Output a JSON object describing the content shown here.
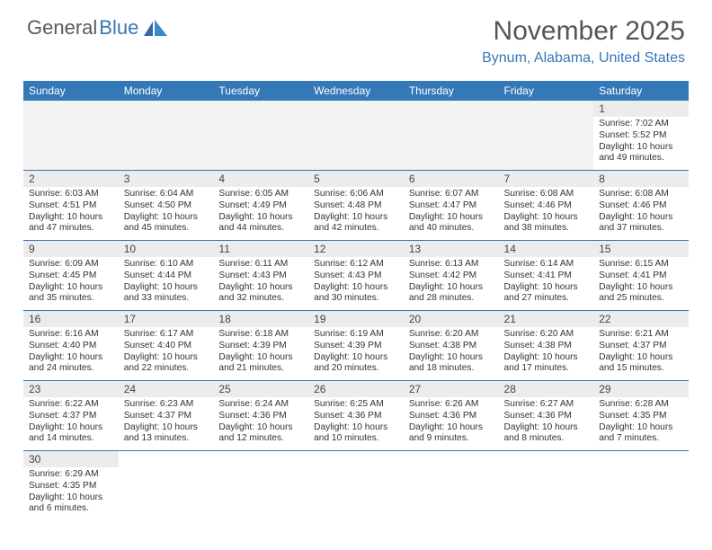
{
  "brand": {
    "part1": "General",
    "part2": "Blue"
  },
  "title": "November 2025",
  "location": "Bynum, Alabama, United States",
  "day_headers": [
    "Sunday",
    "Monday",
    "Tuesday",
    "Wednesday",
    "Thursday",
    "Friday",
    "Saturday"
  ],
  "colors": {
    "accent": "#3478b8",
    "header_text": "#555555",
    "row_shade": "#ececec"
  },
  "weeks": [
    [
      null,
      null,
      null,
      null,
      null,
      null,
      {
        "n": "1",
        "sunrise": "Sunrise: 7:02 AM",
        "sunset": "Sunset: 5:52 PM",
        "daylight": "Daylight: 10 hours and 49 minutes."
      }
    ],
    [
      {
        "n": "2",
        "sunrise": "Sunrise: 6:03 AM",
        "sunset": "Sunset: 4:51 PM",
        "daylight": "Daylight: 10 hours and 47 minutes."
      },
      {
        "n": "3",
        "sunrise": "Sunrise: 6:04 AM",
        "sunset": "Sunset: 4:50 PM",
        "daylight": "Daylight: 10 hours and 45 minutes."
      },
      {
        "n": "4",
        "sunrise": "Sunrise: 6:05 AM",
        "sunset": "Sunset: 4:49 PM",
        "daylight": "Daylight: 10 hours and 44 minutes."
      },
      {
        "n": "5",
        "sunrise": "Sunrise: 6:06 AM",
        "sunset": "Sunset: 4:48 PM",
        "daylight": "Daylight: 10 hours and 42 minutes."
      },
      {
        "n": "6",
        "sunrise": "Sunrise: 6:07 AM",
        "sunset": "Sunset: 4:47 PM",
        "daylight": "Daylight: 10 hours and 40 minutes."
      },
      {
        "n": "7",
        "sunrise": "Sunrise: 6:08 AM",
        "sunset": "Sunset: 4:46 PM",
        "daylight": "Daylight: 10 hours and 38 minutes."
      },
      {
        "n": "8",
        "sunrise": "Sunrise: 6:08 AM",
        "sunset": "Sunset: 4:46 PM",
        "daylight": "Daylight: 10 hours and 37 minutes."
      }
    ],
    [
      {
        "n": "9",
        "sunrise": "Sunrise: 6:09 AM",
        "sunset": "Sunset: 4:45 PM",
        "daylight": "Daylight: 10 hours and 35 minutes."
      },
      {
        "n": "10",
        "sunrise": "Sunrise: 6:10 AM",
        "sunset": "Sunset: 4:44 PM",
        "daylight": "Daylight: 10 hours and 33 minutes."
      },
      {
        "n": "11",
        "sunrise": "Sunrise: 6:11 AM",
        "sunset": "Sunset: 4:43 PM",
        "daylight": "Daylight: 10 hours and 32 minutes."
      },
      {
        "n": "12",
        "sunrise": "Sunrise: 6:12 AM",
        "sunset": "Sunset: 4:43 PM",
        "daylight": "Daylight: 10 hours and 30 minutes."
      },
      {
        "n": "13",
        "sunrise": "Sunrise: 6:13 AM",
        "sunset": "Sunset: 4:42 PM",
        "daylight": "Daylight: 10 hours and 28 minutes."
      },
      {
        "n": "14",
        "sunrise": "Sunrise: 6:14 AM",
        "sunset": "Sunset: 4:41 PM",
        "daylight": "Daylight: 10 hours and 27 minutes."
      },
      {
        "n": "15",
        "sunrise": "Sunrise: 6:15 AM",
        "sunset": "Sunset: 4:41 PM",
        "daylight": "Daylight: 10 hours and 25 minutes."
      }
    ],
    [
      {
        "n": "16",
        "sunrise": "Sunrise: 6:16 AM",
        "sunset": "Sunset: 4:40 PM",
        "daylight": "Daylight: 10 hours and 24 minutes."
      },
      {
        "n": "17",
        "sunrise": "Sunrise: 6:17 AM",
        "sunset": "Sunset: 4:40 PM",
        "daylight": "Daylight: 10 hours and 22 minutes."
      },
      {
        "n": "18",
        "sunrise": "Sunrise: 6:18 AM",
        "sunset": "Sunset: 4:39 PM",
        "daylight": "Daylight: 10 hours and 21 minutes."
      },
      {
        "n": "19",
        "sunrise": "Sunrise: 6:19 AM",
        "sunset": "Sunset: 4:39 PM",
        "daylight": "Daylight: 10 hours and 20 minutes."
      },
      {
        "n": "20",
        "sunrise": "Sunrise: 6:20 AM",
        "sunset": "Sunset: 4:38 PM",
        "daylight": "Daylight: 10 hours and 18 minutes."
      },
      {
        "n": "21",
        "sunrise": "Sunrise: 6:20 AM",
        "sunset": "Sunset: 4:38 PM",
        "daylight": "Daylight: 10 hours and 17 minutes."
      },
      {
        "n": "22",
        "sunrise": "Sunrise: 6:21 AM",
        "sunset": "Sunset: 4:37 PM",
        "daylight": "Daylight: 10 hours and 15 minutes."
      }
    ],
    [
      {
        "n": "23",
        "sunrise": "Sunrise: 6:22 AM",
        "sunset": "Sunset: 4:37 PM",
        "daylight": "Daylight: 10 hours and 14 minutes."
      },
      {
        "n": "24",
        "sunrise": "Sunrise: 6:23 AM",
        "sunset": "Sunset: 4:37 PM",
        "daylight": "Daylight: 10 hours and 13 minutes."
      },
      {
        "n": "25",
        "sunrise": "Sunrise: 6:24 AM",
        "sunset": "Sunset: 4:36 PM",
        "daylight": "Daylight: 10 hours and 12 minutes."
      },
      {
        "n": "26",
        "sunrise": "Sunrise: 6:25 AM",
        "sunset": "Sunset: 4:36 PM",
        "daylight": "Daylight: 10 hours and 10 minutes."
      },
      {
        "n": "27",
        "sunrise": "Sunrise: 6:26 AM",
        "sunset": "Sunset: 4:36 PM",
        "daylight": "Daylight: 10 hours and 9 minutes."
      },
      {
        "n": "28",
        "sunrise": "Sunrise: 6:27 AM",
        "sunset": "Sunset: 4:36 PM",
        "daylight": "Daylight: 10 hours and 8 minutes."
      },
      {
        "n": "29",
        "sunrise": "Sunrise: 6:28 AM",
        "sunset": "Sunset: 4:35 PM",
        "daylight": "Daylight: 10 hours and 7 minutes."
      }
    ],
    [
      {
        "n": "30",
        "sunrise": "Sunrise: 6:29 AM",
        "sunset": "Sunset: 4:35 PM",
        "daylight": "Daylight: 10 hours and 6 minutes."
      },
      null,
      null,
      null,
      null,
      null,
      null
    ]
  ]
}
